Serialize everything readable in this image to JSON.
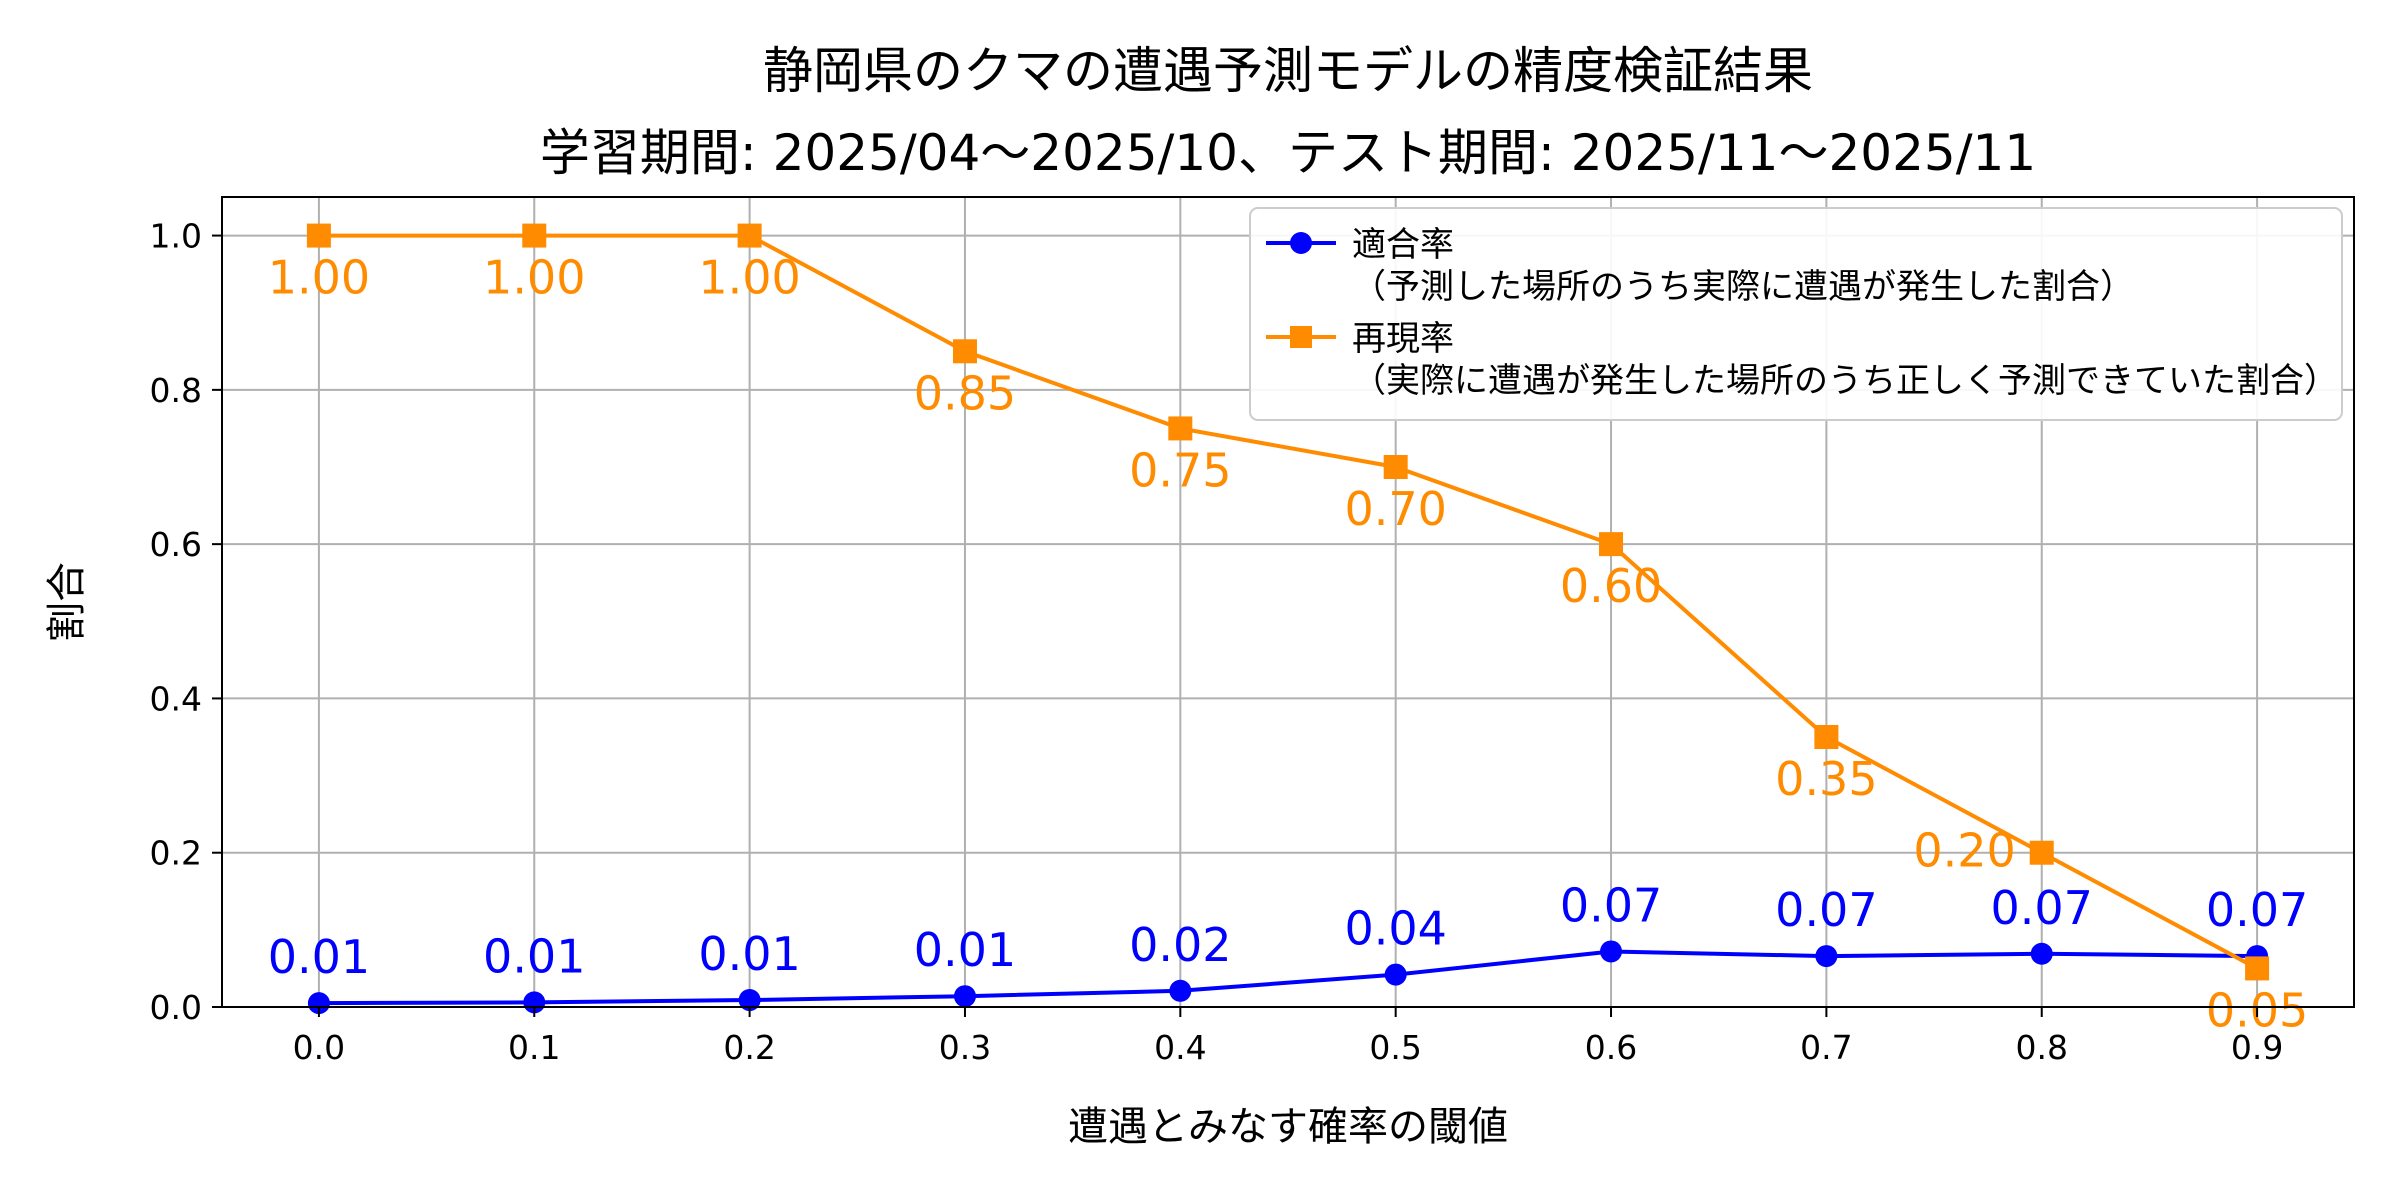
{
  "chart_data": {
    "type": "line",
    "title": "静岡県のクマの遭遇予測モデルの精度検証結果",
    "subtitle": "学習期間: 2025/04〜2025/10、テスト期間: 2025/11〜2025/11",
    "xlabel": "遭遇とみなす確率の閾値",
    "ylabel": "割合",
    "xlim": [
      -0.045,
      0.945
    ],
    "ylim": [
      0,
      1.05
    ],
    "xticks": [
      "0.0",
      "0.1",
      "0.2",
      "0.3",
      "0.4",
      "0.5",
      "0.6",
      "0.7",
      "0.8",
      "0.9"
    ],
    "yticks": [
      "0.0",
      "0.2",
      "0.4",
      "0.6",
      "0.8",
      "1.0"
    ],
    "grid": true,
    "legend_position": "center-right",
    "x": [
      0.0,
      0.1,
      0.2,
      0.3,
      0.4,
      0.5,
      0.6,
      0.7,
      0.8,
      0.9
    ],
    "series": [
      {
        "name": "適合率（予測した場所のうち実際に遭遇が発生した割合）",
        "color": "#0000ff",
        "marker": "circle",
        "values": [
          0.005,
          0.006,
          0.009,
          0.014,
          0.021,
          0.042,
          0.072,
          0.066,
          0.069,
          0.066
        ],
        "labels": [
          "0.01",
          "0.01",
          "0.01",
          "0.01",
          "0.02",
          "0.04",
          "0.07",
          "0.07",
          "0.07",
          "0.07"
        ]
      },
      {
        "name": "再現率（実際に遭遇が発生した場所のうち正しく予測できていた割合）",
        "color": "#ff8c00",
        "marker": "square",
        "values": [
          1.0,
          1.0,
          1.0,
          0.85,
          0.75,
          0.7,
          0.6,
          0.35,
          0.2,
          0.05
        ],
        "labels": [
          "1.00",
          "1.00",
          "1.00",
          "0.85",
          "0.75",
          "0.70",
          "0.60",
          "0.35",
          "0.20",
          "0.05"
        ]
      }
    ]
  }
}
